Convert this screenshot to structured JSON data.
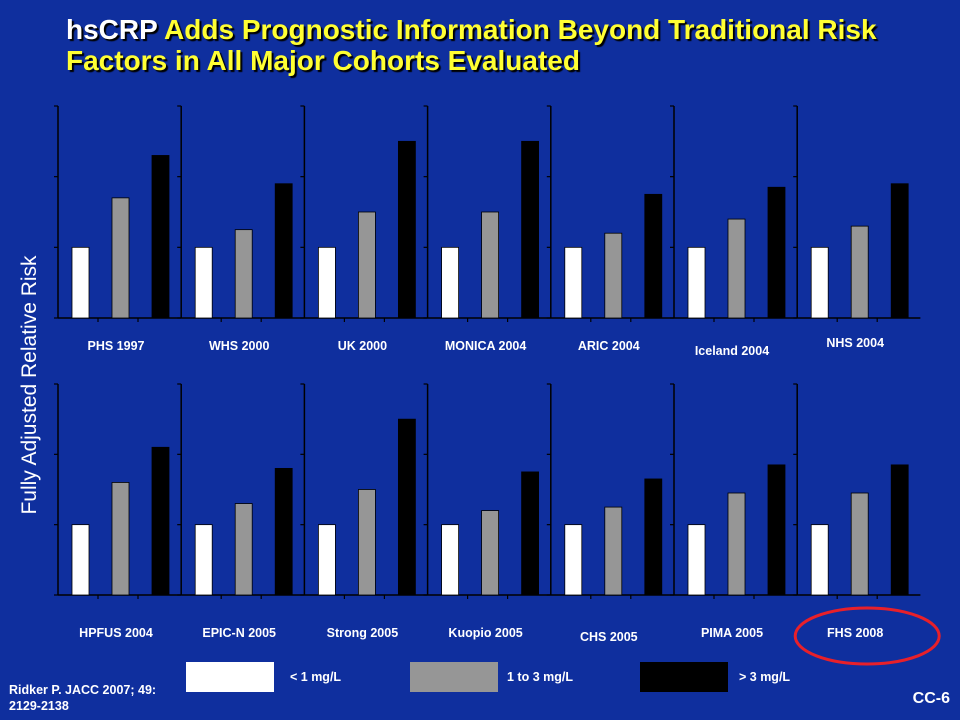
{
  "title": {
    "part1": "hsCRP",
    "part2": " Adds Prognostic Information Beyond Traditional Risk Factors in All Major Cohorts Evaluated"
  },
  "ylabel": "Fully Adjusted Relative Risk",
  "legend": {
    "items": [
      {
        "label": "< 1 mg/L",
        "color": "#ffffff"
      },
      {
        "label": "1 to 3 mg/L",
        "color": "#969696"
      },
      {
        "label": "> 3 mg/L",
        "color": "#000000"
      }
    ]
  },
  "citation": "Ridker P. JACC 2007; 49: 2129-2138",
  "slide_id": "CC-6",
  "highlight_color": "#e8202a",
  "chart_data": {
    "type": "bar",
    "series_names": [
      "< 1 mg/L",
      "1 to 3 mg/L",
      "> 3 mg/L"
    ],
    "series_colors": [
      "#ffffff",
      "#969696",
      "#000000"
    ],
    "ylabel": "Fully Adjusted Relative Risk",
    "ylim": [
      0,
      3
    ],
    "grid": false,
    "highlighted_cohort": "FHS 2008",
    "panels": [
      {
        "row": 1,
        "label": "PHS 1997",
        "values": [
          1.0,
          1.7,
          2.3
        ]
      },
      {
        "row": 1,
        "label": "WHS 2000",
        "values": [
          1.0,
          1.25,
          1.9
        ]
      },
      {
        "row": 1,
        "label": "UK 2000",
        "values": [
          1.0,
          1.5,
          2.5
        ]
      },
      {
        "row": 1,
        "label": "MONICA 2004",
        "values": [
          1.0,
          1.5,
          2.5
        ]
      },
      {
        "row": 1,
        "label": "ARIC 2004",
        "values": [
          1.0,
          1.2,
          1.75
        ]
      },
      {
        "row": 1,
        "label": "Iceland 2004",
        "values": [
          1.0,
          1.4,
          1.85
        ]
      },
      {
        "row": 1,
        "label": "NHS 2004",
        "values": [
          1.0,
          1.3,
          1.9
        ]
      },
      {
        "row": 2,
        "label": "HPFUS 2004",
        "values": [
          1.0,
          1.6,
          2.1
        ]
      },
      {
        "row": 2,
        "label": "EPIC-N 2005",
        "values": [
          1.0,
          1.3,
          1.8
        ]
      },
      {
        "row": 2,
        "label": "Strong 2005",
        "values": [
          1.0,
          1.5,
          2.5
        ]
      },
      {
        "row": 2,
        "label": "Kuopio 2005",
        "values": [
          1.0,
          1.2,
          1.75
        ]
      },
      {
        "row": 2,
        "label": "CHS 2005",
        "values": [
          1.0,
          1.25,
          1.65
        ]
      },
      {
        "row": 2,
        "label": "PIMA 2005",
        "values": [
          1.0,
          1.45,
          1.85
        ]
      },
      {
        "row": 2,
        "label": "FHS 2008",
        "values": [
          1.0,
          1.45,
          1.85
        ]
      }
    ]
  }
}
